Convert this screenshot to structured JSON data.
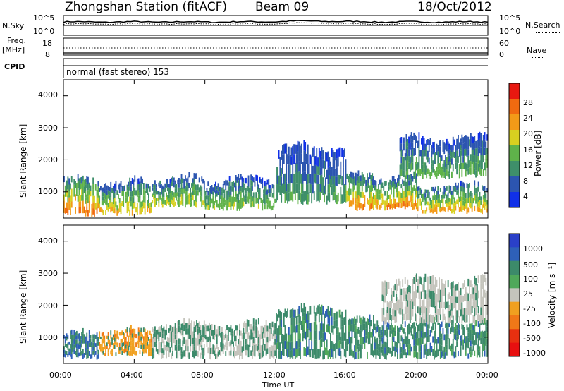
{
  "header": {
    "station": "Zhongshan Station (fitACF)",
    "beam": "Beam 09",
    "date": "18/Oct/2012"
  },
  "top_panel": {
    "left_label": "N.Sky",
    "right_label": "N.Search",
    "left_ticks": [
      "10^5",
      "10^0"
    ],
    "right_ticks": [
      "10^5",
      "10^0"
    ]
  },
  "freq_panel": {
    "left_label_1": "Freq.",
    "left_label_2": "[MHz]",
    "left_ticks": [
      "18",
      "8"
    ],
    "right_label": "Nave",
    "right_ticks": [
      "60",
      "0"
    ]
  },
  "cpid": {
    "label": "CPID",
    "mode": "normal (fast stereo) 153"
  },
  "power_panel": {
    "ylabel": "Slant Range [km]",
    "yticks": [
      "4000",
      "3000",
      "2000",
      "1000"
    ],
    "colorbar_title": "Power [dB]",
    "colorbar_ticks": [
      "28",
      "24",
      "20",
      "16",
      "12",
      "8",
      "4"
    ],
    "colors": [
      "#1030e8",
      "#2c55b0",
      "#3e8f6a",
      "#5fb24a",
      "#d8d020",
      "#f39a18",
      "#f06a10",
      "#e81810"
    ]
  },
  "velocity_panel": {
    "ylabel": "Slant Range [km]",
    "yticks": [
      "4000",
      "3000",
      "2000",
      "1000"
    ],
    "colorbar_title": "Velocity [m s⁻¹]",
    "colorbar_ticks": [
      "1000",
      "500",
      "100",
      "25",
      "-25",
      "-100",
      "-500",
      "-1000"
    ],
    "colors": [
      "#2a40c8",
      "#2e60b8",
      "#3c8a6a",
      "#4fa85a",
      "#c4c4bc",
      "#f0a020",
      "#f07818",
      "#e83010",
      "#e81010"
    ]
  },
  "xaxis": {
    "label": "Time UT",
    "ticks": [
      "00:00",
      "04:00",
      "08:00",
      "12:00",
      "16:00",
      "20:00",
      "00:00"
    ]
  },
  "chart_data": [
    {
      "type": "heatmap",
      "name": "Power",
      "x_range": [
        "00:00",
        "24:00"
      ],
      "y_range_km": [
        180,
        4500
      ],
      "colorbar_range": [
        0,
        30
      ],
      "bands": [
        {
          "t": [
            0,
            2
          ],
          "range_km": [
            200,
            1500
          ],
          "power_dB": 24
        },
        {
          "t": [
            2,
            5
          ],
          "range_km": [
            250,
            1400
          ],
          "power_dB": 18
        },
        {
          "t": [
            5,
            8
          ],
          "range_km": [
            500,
            1500
          ],
          "power_dB": 16
        },
        {
          "t": [
            8,
            12
          ],
          "range_km": [
            400,
            1500
          ],
          "power_dB": 14
        },
        {
          "t": [
            12,
            16
          ],
          "range_km": [
            600,
            2500
          ],
          "power_dB": 10
        },
        {
          "t": [
            16,
            20
          ],
          "range_km": [
            400,
            1600
          ],
          "power_dB": 22
        },
        {
          "t": [
            19,
            24
          ],
          "range_km": [
            1400,
            2800
          ],
          "power_dB": 12
        },
        {
          "t": [
            20,
            24
          ],
          "range_km": [
            300,
            1300
          ],
          "power_dB": 20
        }
      ]
    },
    {
      "type": "heatmap",
      "name": "Velocity",
      "x_range": [
        "00:00",
        "24:00"
      ],
      "y_range_km": [
        180,
        4500
      ],
      "colorbar_range": [
        -1000,
        1000
      ],
      "bands": [
        {
          "t": [
            0,
            2
          ],
          "range_km": [
            300,
            1200
          ],
          "velocity_ms": 300
        },
        {
          "t": [
            2,
            5
          ],
          "range_km": [
            400,
            1300
          ],
          "velocity_ms": -200
        },
        {
          "t": [
            5,
            12
          ],
          "range_km": [
            300,
            1500
          ],
          "velocity_ms": 100
        },
        {
          "t": [
            12,
            16
          ],
          "range_km": [
            300,
            2000
          ],
          "velocity_ms": 150
        },
        {
          "t": [
            16,
            24
          ],
          "range_km": [
            300,
            1600
          ],
          "velocity_ms": 120
        },
        {
          "t": [
            18,
            24
          ],
          "range_km": [
            1400,
            2900
          ],
          "velocity_ms": 0
        }
      ]
    }
  ]
}
